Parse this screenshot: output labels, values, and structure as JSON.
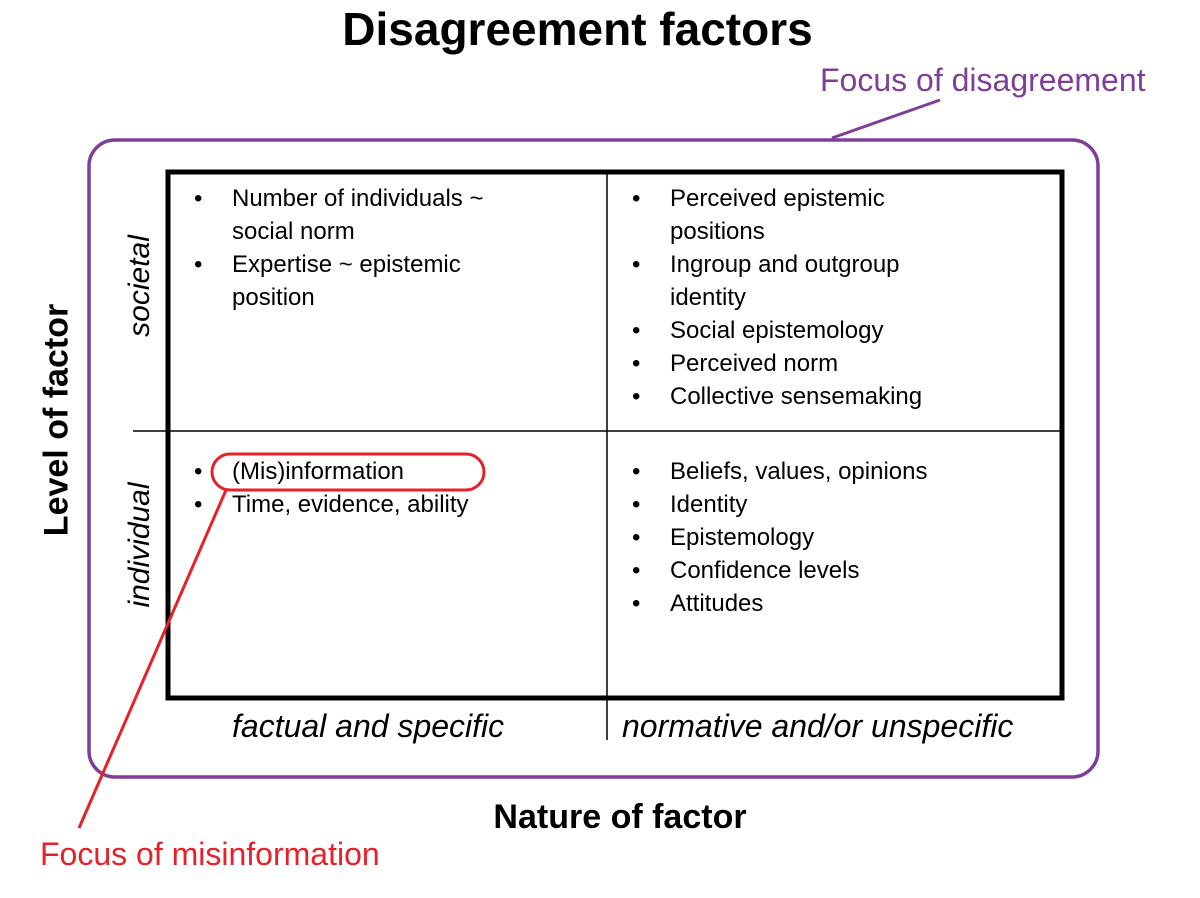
{
  "title": "Disagreement factors",
  "focus_disagreement_label": "Focus of disagreement",
  "focus_misinformation_label": "Focus of misinformation",
  "x_axis_label": "Nature of factor",
  "y_axis_label": "Level of factor",
  "rows": [
    "societal",
    "individual"
  ],
  "columns": [
    "factual and specific",
    "normative and/or unspecific"
  ],
  "cells": {
    "societal_factual": [
      "Number of individuals ~ social norm",
      "Expertise ~ epistemic position"
    ],
    "societal_normative": [
      "Perceived epistemic positions",
      "Ingroup and outgroup identity",
      "Social epistemology",
      "Perceived norm",
      "Collective sensemaking"
    ],
    "individual_factual": [
      "(Mis)information",
      "Time, evidence, ability"
    ],
    "individual_normative": [
      "Beliefs, values, opinions",
      "Identity",
      "Epistemology",
      "Confidence levels",
      "Attitudes"
    ]
  },
  "colors": {
    "disagreement": "#7f3f98",
    "misinformation": "#e8202a",
    "grid": "#000000"
  }
}
